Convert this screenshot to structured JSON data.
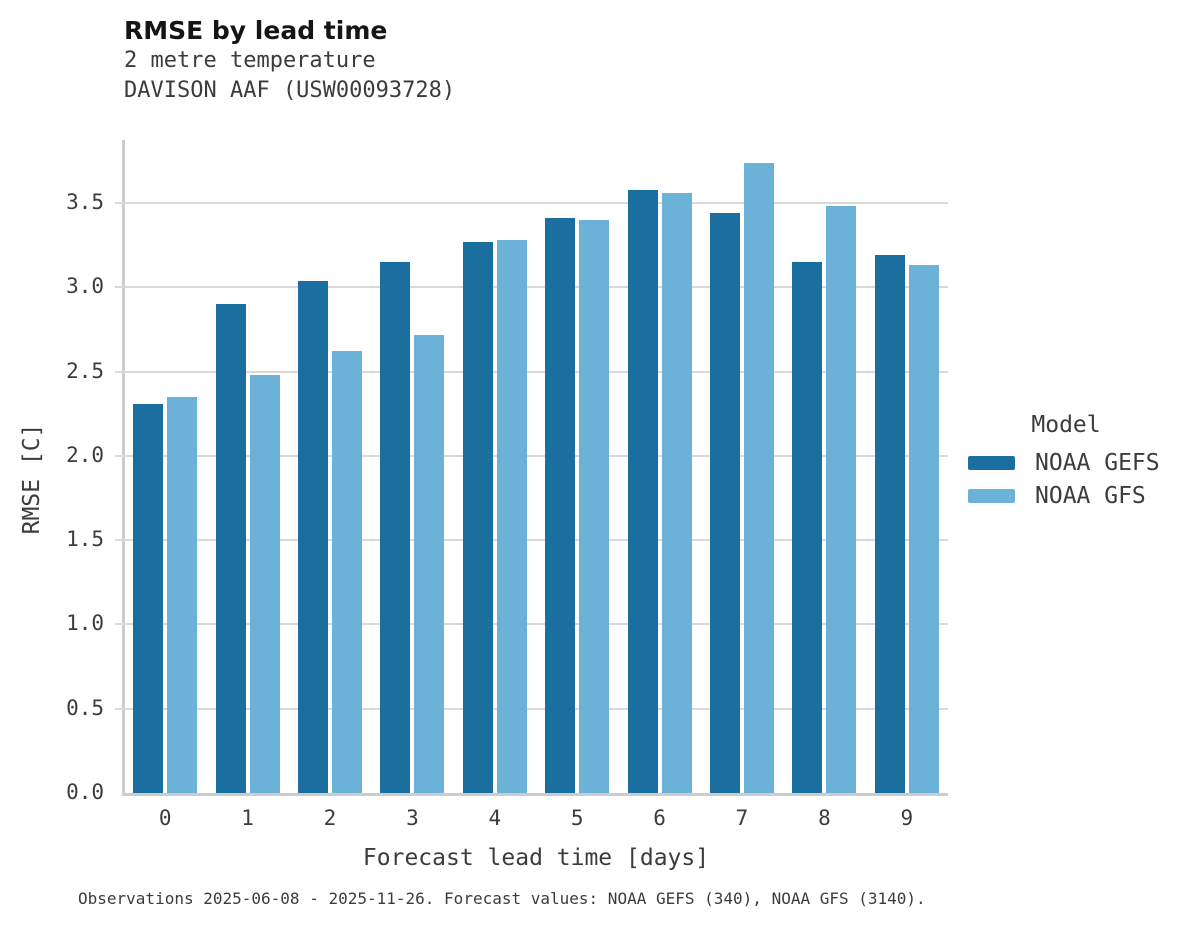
{
  "title": "RMSE by lead time",
  "subtitle_line1": "2 metre temperature",
  "subtitle_line2": "DAVISON AAF (USW00093728)",
  "caption": "Observations 2025-06-08 - 2025-11-26. Forecast values: NOAA GEFS (340), NOAA GFS (3140).",
  "legend": {
    "title": "Model",
    "entries": [
      {
        "label": "NOAA GEFS",
        "color": "#1b6f9e"
      },
      {
        "label": "NOAA GFS",
        "color": "#6cb1d8"
      }
    ]
  },
  "colors": {
    "gefs": "#1b6f9e",
    "gfs": "#6cb1d8",
    "grid": "#d9d9d9",
    "axis": "#cccccc",
    "title_text": "#151515",
    "body_text": "#3c3c3c"
  },
  "chart_data": {
    "type": "bar",
    "title": "RMSE by lead time",
    "subtitle": [
      "2 metre temperature",
      "DAVISON AAF (USW00093728)"
    ],
    "xlabel": "Forecast lead time [days]",
    "ylabel": "RMSE [C]",
    "categories": [
      0,
      1,
      2,
      3,
      4,
      5,
      6,
      7,
      8,
      9
    ],
    "series": [
      {
        "name": "NOAA GEFS",
        "color": "#1b6f9e",
        "values": [
          2.31,
          2.9,
          3.04,
          3.15,
          3.27,
          3.41,
          3.58,
          3.44,
          3.15,
          3.19
        ]
      },
      {
        "name": "NOAA GFS",
        "color": "#6cb1d8",
        "values": [
          2.35,
          2.48,
          2.62,
          2.72,
          3.28,
          3.4,
          3.56,
          3.74,
          3.48,
          3.13
        ]
      }
    ],
    "ylim": [
      0,
      3.87
    ],
    "yticks": [
      "0.0",
      "0.5",
      "1.0",
      "1.5",
      "2.0",
      "2.5",
      "3.0",
      "3.5"
    ],
    "grid": true,
    "legend_title": "Model",
    "legend_position": "right",
    "caption": "Observations 2025-06-08 - 2025-11-26. Forecast values: NOAA GEFS (340), NOAA GFS (3140)."
  }
}
